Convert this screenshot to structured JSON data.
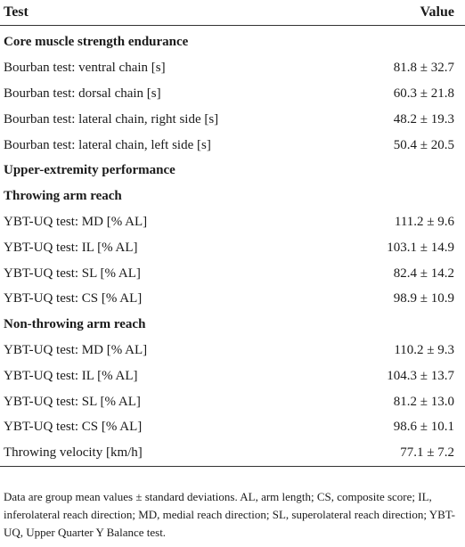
{
  "table": {
    "headers": {
      "test": "Test",
      "value": "Value"
    },
    "rows": [
      {
        "kind": "section",
        "test": "Core muscle strength endurance",
        "value": ""
      },
      {
        "kind": "data",
        "test": "Bourban test: ventral chain [s]",
        "value": "81.8 ± 32.7"
      },
      {
        "kind": "data",
        "test": "Bourban test: dorsal chain [s]",
        "value": "60.3 ± 21.8"
      },
      {
        "kind": "data",
        "test": "Bourban test: lateral chain, right side [s]",
        "value": "48.2 ± 19.3"
      },
      {
        "kind": "data",
        "test": "Bourban test: lateral chain, left side [s]",
        "value": "50.4 ± 20.5"
      },
      {
        "kind": "section",
        "test": "Upper-extremity performance",
        "value": ""
      },
      {
        "kind": "section",
        "test": "Throwing arm reach",
        "value": ""
      },
      {
        "kind": "data",
        "test": "YBT-UQ test: MD [% AL]",
        "value": "111.2 ± 9.6"
      },
      {
        "kind": "data",
        "test": "YBT-UQ test: IL [% AL]",
        "value": "103.1 ± 14.9"
      },
      {
        "kind": "data",
        "test": "YBT-UQ test: SL [% AL]",
        "value": "82.4 ± 14.2"
      },
      {
        "kind": "data",
        "test": "YBT-UQ test: CS [% AL]",
        "value": "98.9 ± 10.9"
      },
      {
        "kind": "section",
        "test": "Non-throwing arm reach",
        "value": ""
      },
      {
        "kind": "data",
        "test": "YBT-UQ test: MD [% AL]",
        "value": "110.2 ± 9.3"
      },
      {
        "kind": "data",
        "test": "YBT-UQ test: IL [% AL]",
        "value": "104.3 ± 13.7"
      },
      {
        "kind": "data",
        "test": "YBT-UQ test: SL [% AL]",
        "value": "81.2 ± 13.0"
      },
      {
        "kind": "data",
        "test": "YBT-UQ test: CS [% AL]",
        "value": "98.6 ± 10.1"
      },
      {
        "kind": "data",
        "test": "Throwing velocity [km/h]",
        "value": "77.1 ± 7.2"
      }
    ]
  },
  "footnote": "Data are group mean values ± standard deviations. AL, arm length; CS, composite score; IL, inferolateral reach direction; MD, medial reach direction; SL, superolateral reach direction; YBT-UQ, Upper Quarter Y Balance test."
}
